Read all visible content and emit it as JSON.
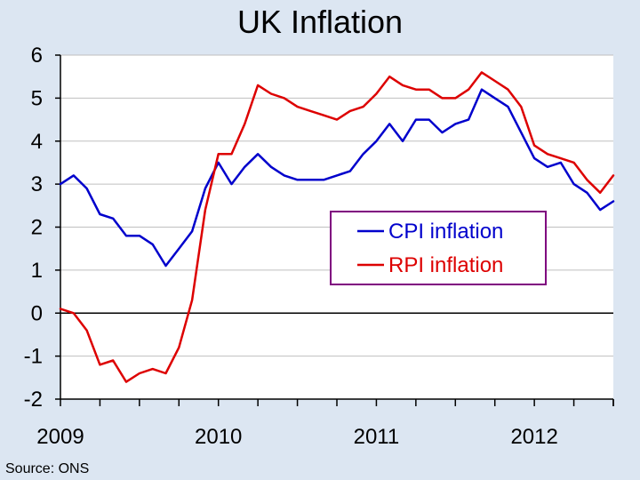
{
  "chart_data": {
    "type": "line",
    "title": "UK Inflation",
    "xlabel": "",
    "ylabel": "",
    "ylim": [
      -2,
      6
    ],
    "yticks": [
      -2,
      -1,
      0,
      1,
      2,
      3,
      4,
      5,
      6
    ],
    "x_labels": [
      "2009",
      "2010",
      "2011",
      "2012"
    ],
    "grid": true,
    "legend_position": "center-right",
    "series": [
      {
        "name": "CPI inflation",
        "color": "#0000cc",
        "values": [
          3.0,
          3.2,
          2.9,
          2.3,
          2.2,
          1.8,
          1.8,
          1.6,
          1.1,
          1.5,
          1.9,
          2.9,
          3.5,
          3.0,
          3.4,
          3.7,
          3.4,
          3.2,
          3.1,
          3.1,
          3.1,
          3.2,
          3.3,
          3.7,
          4.0,
          4.4,
          4.0,
          4.5,
          4.5,
          4.2,
          4.4,
          4.5,
          5.2,
          5.0,
          4.8,
          4.2,
          3.6,
          3.4,
          3.5,
          3.0,
          2.8,
          2.4,
          2.6
        ]
      },
      {
        "name": "RPI inflation",
        "color": "#dd0000",
        "values": [
          0.1,
          0.0,
          -0.4,
          -1.2,
          -1.1,
          -1.6,
          -1.4,
          -1.3,
          -1.4,
          -0.8,
          0.3,
          2.4,
          3.7,
          3.7,
          4.4,
          5.3,
          5.1,
          5.0,
          4.8,
          4.7,
          4.6,
          4.5,
          4.7,
          4.8,
          5.1,
          5.5,
          5.3,
          5.2,
          5.2,
          5.0,
          5.0,
          5.2,
          5.6,
          5.4,
          5.2,
          4.8,
          3.9,
          3.7,
          3.6,
          3.5,
          3.1,
          2.8,
          3.2
        ]
      }
    ]
  },
  "source_note": "Source: ONS"
}
